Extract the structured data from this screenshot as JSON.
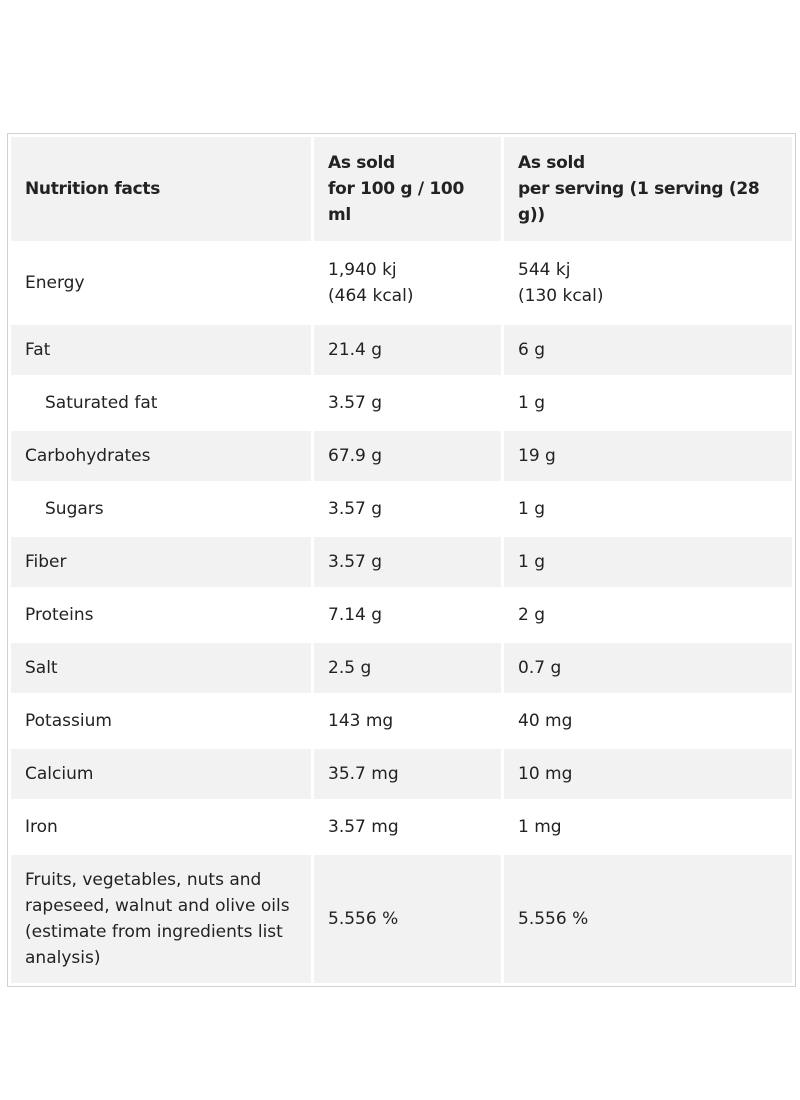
{
  "table": {
    "header": [
      "Nutrition facts",
      "As sold\nfor 100 g / 100 ml",
      "As sold\nper serving (1 serving (28 g))"
    ],
    "rows": [
      [
        "Energy",
        "1,940 kj\n(464 kcal)",
        "544 kj\n(130 kcal)"
      ],
      [
        "Fat",
        "21.4 g",
        "6 g"
      ],
      [
        "Saturated fat",
        "3.57 g",
        "1 g"
      ],
      [
        "Carbohydrates",
        "67.9 g",
        "19 g"
      ],
      [
        "Sugars",
        "3.57 g",
        "1 g"
      ],
      [
        "Fiber",
        "3.57 g",
        "1 g"
      ],
      [
        "Proteins",
        "7.14 g",
        "2 g"
      ],
      [
        "Salt",
        "2.5 g",
        "0.7 g"
      ],
      [
        "Potassium",
        "143 mg",
        "40 mg"
      ],
      [
        "Calcium",
        "35.7 mg",
        "10 mg"
      ],
      [
        "Iron",
        "3.57 mg",
        "1 mg"
      ],
      [
        "Fruits, vegetables, nuts and rapeseed, walnut and olive oils (estimate from ingredients list analysis)",
        "5.556 %",
        "5.556 %"
      ]
    ]
  }
}
